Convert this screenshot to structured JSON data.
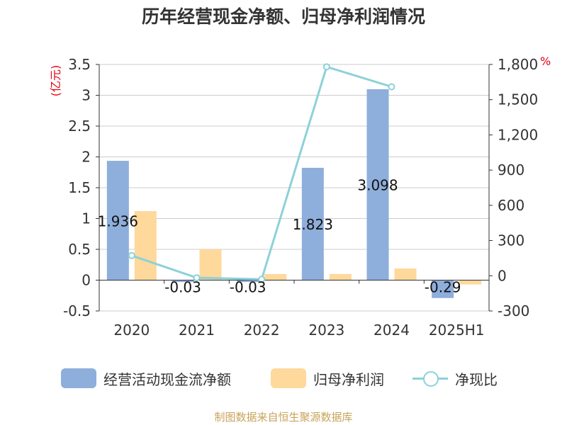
{
  "title": "历年经营现金净额、归母净利润情况",
  "source": "制图数据来自恒生聚源数据库",
  "colors": {
    "cash_flow": "#8eaedb",
    "net_profit": "#ffd89c",
    "ratio": "#8dd1d9",
    "unit": "#e60012",
    "axis_text": "#333333",
    "grid": "#cccccc"
  },
  "legend": [
    {
      "label": "经营活动现金流净额",
      "swatch": "bar",
      "color": "#8eaedb"
    },
    {
      "label": "归母净利润",
      "swatch": "bar",
      "color": "#ffd89c"
    },
    {
      "label": "净现比",
      "swatch": "line-dot",
      "color": "#8dd1d9"
    }
  ],
  "chart_data": {
    "type": "bar",
    "categories": [
      "2020",
      "2021",
      "2022",
      "2023",
      "2024",
      "2025H1"
    ],
    "series": [
      {
        "name": "经营活动现金流净额",
        "type": "bar",
        "axis": "left",
        "values": [
          1.936,
          -0.03,
          -0.03,
          1.823,
          3.098,
          -0.29
        ],
        "value_labels": [
          "1.936",
          "-0.03",
          "-0.03",
          "1.823",
          "3.098",
          "-0.29"
        ]
      },
      {
        "name": "归母净利润",
        "type": "bar",
        "axis": "left",
        "values": [
          1.12,
          0.5,
          0.1,
          0.1,
          0.19,
          -0.07
        ]
      },
      {
        "name": "净现比",
        "type": "line",
        "axis": "right",
        "values": [
          172,
          -17,
          -30,
          1780,
          1610,
          null
        ]
      }
    ],
    "y_left": {
      "unit": "(亿元)",
      "ylim": [
        -0.5,
        3.5
      ],
      "ticks": [
        -0.5,
        0,
        0.5,
        1,
        1.5,
        2,
        2.5,
        3,
        3.5
      ],
      "tick_labels": [
        "-0.5",
        "0",
        "0.5",
        "1",
        "1.5",
        "2",
        "2.5",
        "3",
        "3.5"
      ]
    },
    "y_right": {
      "unit": "%",
      "ylim": [
        -300,
        1800
      ],
      "ticks": [
        -300,
        0,
        300,
        600,
        900,
        1200,
        1500,
        1800
      ],
      "tick_labels": [
        "-300",
        "0",
        "300",
        "600",
        "900",
        "1,200",
        "1,500",
        "1,800"
      ]
    },
    "grid": true,
    "legend_position": "bottom"
  }
}
